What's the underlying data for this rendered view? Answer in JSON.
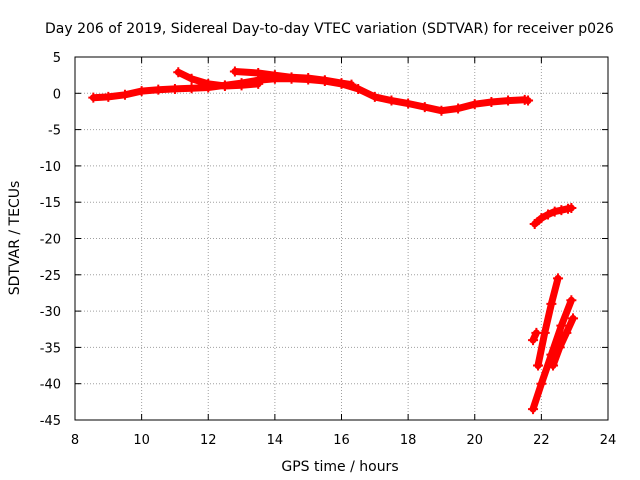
{
  "chart_data": {
    "type": "scatter",
    "title": "Day 206 of 2019, Sidereal Day-to-day VTEC variation (SDTVAR) for receiver p026",
    "xlabel": "GPS time / hours",
    "ylabel": "SDTVAR / TECUs",
    "xlim": [
      8,
      24
    ],
    "ylim": [
      -45,
      5
    ],
    "xticks": [
      8,
      10,
      12,
      14,
      16,
      18,
      20,
      22,
      24
    ],
    "yticks": [
      5,
      0,
      -5,
      -10,
      -15,
      -20,
      -25,
      -30,
      -35,
      -40,
      -45
    ],
    "grid": true,
    "legend": "none",
    "marker": "plus",
    "color": "#ff0000",
    "series": [
      {
        "x": [
          8.55,
          9.0,
          9.5,
          10.0,
          10.5,
          11.0,
          11.5,
          12.0,
          12.5,
          13.0,
          13.5,
          14.0,
          14.5,
          15.0,
          15.5,
          16.0,
          16.5,
          17.0,
          17.5,
          18.0,
          18.5,
          19.0,
          19.5,
          20.0,
          20.5,
          21.0,
          21.5,
          21.6
        ],
        "y": [
          -0.6,
          -0.5,
          -0.2,
          0.3,
          0.5,
          0.6,
          0.7,
          0.8,
          1.1,
          1.4,
          1.8,
          2.0,
          2.0,
          1.9,
          1.7,
          1.3,
          0.6,
          -0.5,
          -1.0,
          -1.4,
          -1.9,
          -2.4,
          -2.1,
          -1.5,
          -1.2,
          -1.0,
          -0.9,
          -1.0
        ]
      },
      {
        "x": [
          11.1,
          11.5,
          12.0,
          12.5,
          13.0,
          13.5
        ],
        "y": [
          2.9,
          2.0,
          1.3,
          1.0,
          1.1,
          1.3
        ]
      },
      {
        "x": [
          12.8,
          13.5,
          14.0,
          14.5,
          15.0,
          15.5,
          16.0,
          16.3
        ],
        "y": [
          3.0,
          2.8,
          2.5,
          2.2,
          2.1,
          1.8,
          1.4,
          1.2
        ]
      },
      {
        "x": [
          21.8,
          22.0,
          22.2,
          22.4,
          22.6,
          22.8,
          22.9
        ],
        "y": [
          -18.0,
          -17.2,
          -16.7,
          -16.3,
          -16.1,
          -15.9,
          -15.8
        ]
      },
      {
        "x": [
          21.75,
          21.85
        ],
        "y": [
          -34.0,
          -33.0
        ]
      },
      {
        "x": [
          21.9,
          22.1,
          22.3,
          22.5
        ],
        "y": [
          -37.5,
          -33.0,
          -29.0,
          -25.5
        ]
      },
      {
        "x": [
          21.75,
          22.0,
          22.3,
          22.6,
          22.9
        ],
        "y": [
          -43.5,
          -40.0,
          -36.0,
          -32.0,
          -28.5
        ]
      },
      {
        "x": [
          22.35,
          22.55,
          22.75,
          22.95
        ],
        "y": [
          -37.5,
          -35.0,
          -33.0,
          -31.0
        ]
      }
    ]
  }
}
